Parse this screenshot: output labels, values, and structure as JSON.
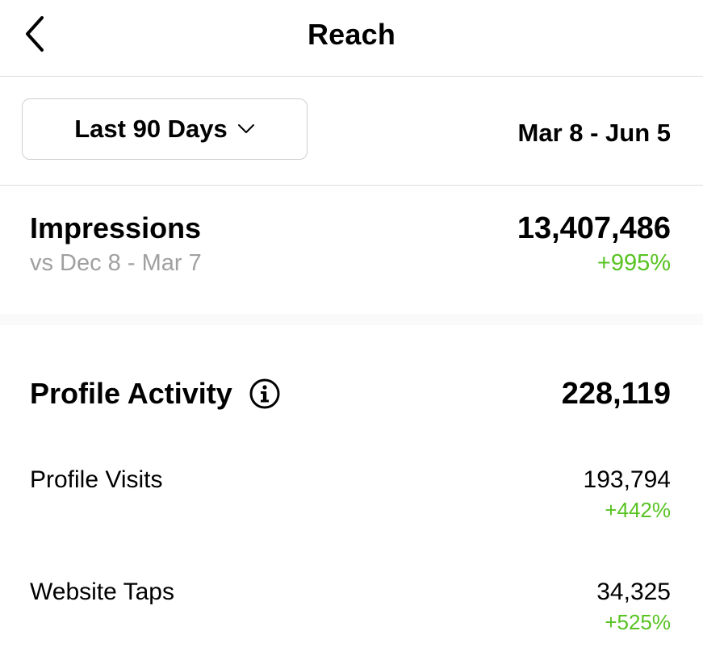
{
  "header": {
    "title": "Reach",
    "back_icon": "chevron-left-icon"
  },
  "filter": {
    "selected_range": "Last 90 Days",
    "dropdown_icon": "chevron-down-icon",
    "date_range": "Mar 8 - Jun 5"
  },
  "impressions": {
    "title": "Impressions",
    "comparison": "vs Dec 8 - Mar 7",
    "value": "13,407,486",
    "change": "+995%"
  },
  "profile_activity": {
    "title": "Profile Activity",
    "info_icon": "info-icon",
    "total": "228,119",
    "metrics": [
      {
        "label": "Profile Visits",
        "value": "193,794",
        "change": "+442%"
      },
      {
        "label": "Website Taps",
        "value": "34,325",
        "change": "+525%"
      }
    ]
  },
  "colors": {
    "positive_change": "#58c322",
    "muted_text": "#a0a0a0",
    "divider": "#dcdcdc"
  }
}
